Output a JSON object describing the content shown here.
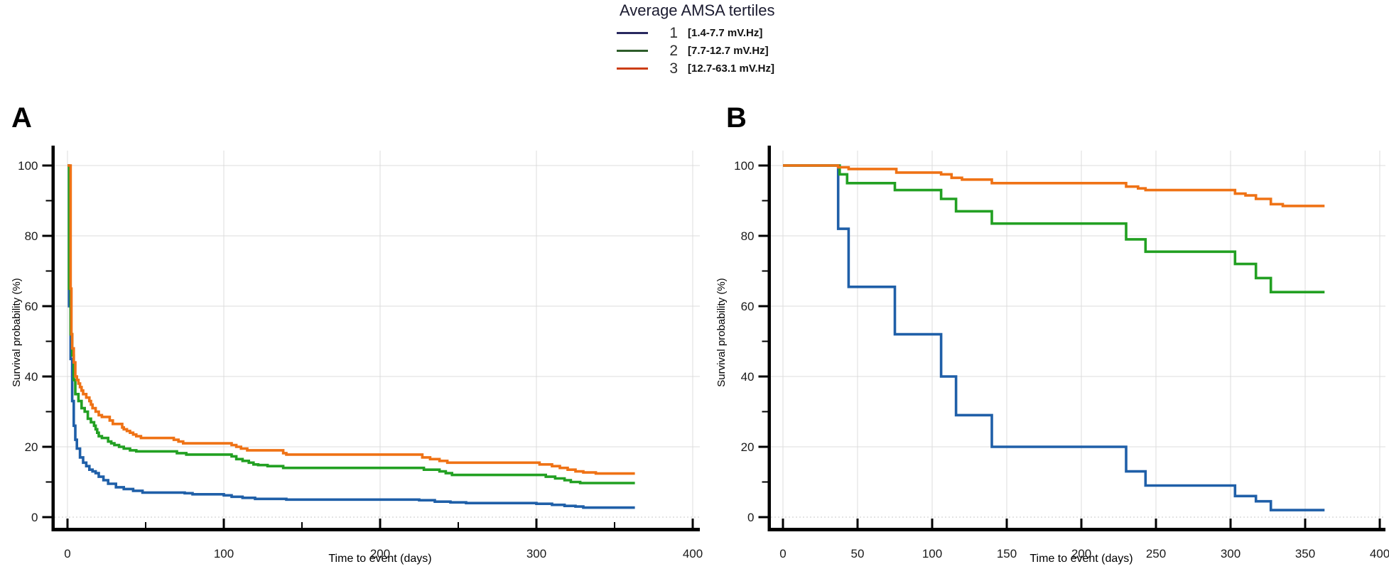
{
  "legend": {
    "title": "Average AMSA tertiles",
    "items": [
      {
        "num": "1",
        "range": "[1.4-7.7 mV.Hz]",
        "swatch_color": "#28285f"
      },
      {
        "num": "2",
        "range": "[7.7-12.7 mV.Hz]",
        "swatch_color": "#2d5c2a"
      },
      {
        "num": "3",
        "range": "[12.7-63.1 mV.Hz]",
        "swatch_color": "#cc3d12"
      }
    ]
  },
  "panels": {
    "a_label": "A",
    "b_label": "B"
  },
  "colors": {
    "grid": "#dcdcdc",
    "zero_line": "#c8c8c8",
    "axis": "#000000",
    "tick_label": "#1a1a1a"
  },
  "chart_data": [
    {
      "panel": "A",
      "type": "line",
      "subtype": "kaplan-meier-step",
      "title": "",
      "xlabel": "Time to event (days)",
      "ylabel": "Survival probability (%)",
      "xlim": [
        0,
        400
      ],
      "ylim": [
        0,
        100
      ],
      "xticks_major": [
        0,
        100,
        200,
        300,
        400
      ],
      "xticks_minor": [
        50,
        150,
        250,
        350
      ],
      "yticks_major": [
        0,
        20,
        40,
        60,
        80,
        100
      ],
      "yticks_minor": [
        10,
        30,
        50,
        70,
        90
      ],
      "grid": "on",
      "legend_position": "top-outside",
      "xmax_data": 363,
      "series": [
        {
          "name": "1",
          "color": "#1f5fa8",
          "points": [
            [
              0,
              100
            ],
            [
              1,
              60
            ],
            [
              2,
              45
            ],
            [
              3,
              33
            ],
            [
              4,
              26
            ],
            [
              5,
              22
            ],
            [
              6,
              19.5
            ],
            [
              8,
              17
            ],
            [
              10,
              15.5
            ],
            [
              12,
              14.5
            ],
            [
              14,
              13.5
            ],
            [
              16,
              13
            ],
            [
              18,
              12.5
            ],
            [
              20,
              11.5
            ],
            [
              23,
              10.5
            ],
            [
              26,
              9.5
            ],
            [
              31,
              8.5
            ],
            [
              36,
              8
            ],
            [
              42,
              7.5
            ],
            [
              48,
              7
            ],
            [
              75,
              6.8
            ],
            [
              80,
              6.5
            ],
            [
              100,
              6.2
            ],
            [
              105,
              5.8
            ],
            [
              112,
              5.5
            ],
            [
              120,
              5.2
            ],
            [
              140,
              5
            ],
            [
              225,
              4.8
            ],
            [
              235,
              4.4
            ],
            [
              245,
              4.2
            ],
            [
              255,
              4
            ],
            [
              300,
              3.8
            ],
            [
              310,
              3.5
            ],
            [
              318,
              3.2
            ],
            [
              325,
              3
            ],
            [
              330,
              2.7
            ],
            [
              363,
              2.7
            ]
          ]
        },
        {
          "name": "2",
          "color": "#22a022",
          "points": [
            [
              0,
              100
            ],
            [
              1,
              65
            ],
            [
              2,
              52
            ],
            [
              3,
              46
            ],
            [
              4,
              39
            ],
            [
              5,
              35
            ],
            [
              7,
              33
            ],
            [
              9,
              31
            ],
            [
              11,
              30
            ],
            [
              13,
              28
            ],
            [
              15,
              27
            ],
            [
              17,
              26
            ],
            [
              18,
              25
            ],
            [
              19,
              24
            ],
            [
              20,
              23
            ],
            [
              22,
              22.5
            ],
            [
              26,
              21.5
            ],
            [
              28,
              21
            ],
            [
              30,
              20.5
            ],
            [
              33,
              20
            ],
            [
              36,
              19.5
            ],
            [
              40,
              19
            ],
            [
              44,
              18.7
            ],
            [
              70,
              18.2
            ],
            [
              76,
              17.8
            ],
            [
              105,
              17.3
            ],
            [
              108,
              16.5
            ],
            [
              112,
              16
            ],
            [
              116,
              15.5
            ],
            [
              119,
              15
            ],
            [
              122,
              14.8
            ],
            [
              128,
              14.5
            ],
            [
              138,
              14
            ],
            [
              228,
              13.5
            ],
            [
              238,
              13
            ],
            [
              242,
              12.5
            ],
            [
              246,
              12
            ],
            [
              306,
              11.5
            ],
            [
              312,
              11
            ],
            [
              318,
              10.5
            ],
            [
              322,
              10
            ],
            [
              328,
              9.7
            ],
            [
              363,
              9.7
            ]
          ]
        },
        {
          "name": "3",
          "color": "#ef7215",
          "points": [
            [
              0,
              100
            ],
            [
              2,
              65
            ],
            [
              2.5,
              52
            ],
            [
              3,
              48
            ],
            [
              4,
              44
            ],
            [
              5,
              40
            ],
            [
              6,
              39
            ],
            [
              7,
              38
            ],
            [
              8,
              37
            ],
            [
              9,
              36
            ],
            [
              10,
              35
            ],
            [
              12,
              34
            ],
            [
              14,
              33
            ],
            [
              15,
              32
            ],
            [
              16,
              31
            ],
            [
              18,
              30
            ],
            [
              20,
              29
            ],
            [
              22,
              28.5
            ],
            [
              27,
              27.5
            ],
            [
              29,
              26.5
            ],
            [
              35,
              25.5
            ],
            [
              36,
              25
            ],
            [
              38,
              24.5
            ],
            [
              40,
              24
            ],
            [
              42,
              23.5
            ],
            [
              44,
              23
            ],
            [
              47,
              22.5
            ],
            [
              68,
              22
            ],
            [
              71,
              21.5
            ],
            [
              74,
              21
            ],
            [
              105,
              20.5
            ],
            [
              108,
              20
            ],
            [
              111,
              19.5
            ],
            [
              115,
              19
            ],
            [
              138,
              18.2
            ],
            [
              140,
              17.8
            ],
            [
              227,
              17
            ],
            [
              232,
              16.5
            ],
            [
              238,
              16
            ],
            [
              243,
              15.5
            ],
            [
              302,
              15
            ],
            [
              310,
              14.5
            ],
            [
              315,
              14
            ],
            [
              320,
              13.5
            ],
            [
              325,
              13
            ],
            [
              330,
              12.7
            ],
            [
              338,
              12.4
            ],
            [
              363,
              12.4
            ]
          ]
        }
      ]
    },
    {
      "panel": "B",
      "type": "line",
      "subtype": "kaplan-meier-step",
      "title": "",
      "xlabel": "Time to event (days)",
      "ylabel": "Survival probability (%)",
      "xlim": [
        0,
        400
      ],
      "ylim": [
        0,
        100
      ],
      "xticks_major": [
        0,
        50,
        100,
        150,
        200,
        250,
        300,
        350,
        400
      ],
      "xticks_minor": [],
      "yticks_major": [
        0,
        20,
        40,
        60,
        80,
        100
      ],
      "yticks_minor": [
        10,
        30,
        50,
        70,
        90
      ],
      "grid": "on",
      "legend_position": "top-outside",
      "xmax_data": 363,
      "series": [
        {
          "name": "1",
          "color": "#1f5fa8",
          "points": [
            [
              0,
              100
            ],
            [
              37,
              82
            ],
            [
              44,
              65.5
            ],
            [
              75,
              52
            ],
            [
              106,
              40
            ],
            [
              116,
              29
            ],
            [
              140,
              20
            ],
            [
              230,
              13
            ],
            [
              243,
              9
            ],
            [
              303,
              6
            ],
            [
              317,
              4.5
            ],
            [
              327,
              2
            ],
            [
              363,
              2
            ]
          ]
        },
        {
          "name": "2",
          "color": "#22a022",
          "points": [
            [
              0,
              100
            ],
            [
              38,
              97.5
            ],
            [
              43,
              95
            ],
            [
              75,
              93
            ],
            [
              106,
              90.5
            ],
            [
              116,
              87
            ],
            [
              140,
              83.5
            ],
            [
              230,
              79
            ],
            [
              243,
              75.5
            ],
            [
              303,
              72
            ],
            [
              317,
              68
            ],
            [
              327,
              64
            ],
            [
              363,
              64
            ]
          ]
        },
        {
          "name": "3",
          "color": "#ef7215",
          "points": [
            [
              0,
              100
            ],
            [
              37,
              99.5
            ],
            [
              44,
              99
            ],
            [
              76,
              98
            ],
            [
              106,
              97.5
            ],
            [
              113,
              96.5
            ],
            [
              120,
              96
            ],
            [
              140,
              95
            ],
            [
              230,
              94
            ],
            [
              238,
              93.5
            ],
            [
              243,
              93
            ],
            [
              303,
              92
            ],
            [
              310,
              91.5
            ],
            [
              317,
              90.5
            ],
            [
              327,
              89
            ],
            [
              335,
              88.5
            ],
            [
              363,
              88.5
            ]
          ]
        }
      ]
    }
  ]
}
